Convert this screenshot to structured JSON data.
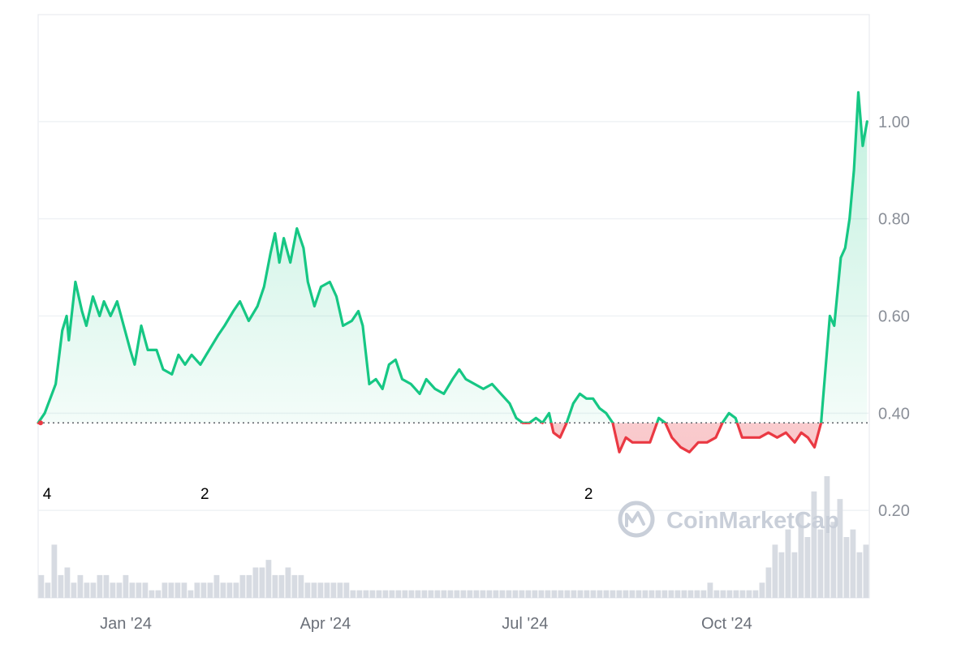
{
  "chart_data": {
    "type": "area",
    "title": "",
    "xlabel": "",
    "ylabel": "",
    "baseline": 0.38,
    "ylim": [
      0.02,
      1.22
    ],
    "xlim": [
      "2023-11-22",
      "2024-12-05"
    ],
    "yticks": [
      {
        "value": 0.2,
        "label": "0.20"
      },
      {
        "value": 0.4,
        "label": "0.40"
      },
      {
        "value": 0.6,
        "label": "0.60"
      },
      {
        "value": 0.8,
        "label": "0.80"
      },
      {
        "value": 1.0,
        "label": "1.00"
      }
    ],
    "xticks": [
      {
        "date": "2024-01-01",
        "label": "Jan '24"
      },
      {
        "date": "2024-04-01",
        "label": "Apr '24"
      },
      {
        "date": "2024-07-01",
        "label": "Jul '24"
      },
      {
        "date": "2024-10-01",
        "label": "Oct '24"
      }
    ],
    "events": [
      {
        "date": "2023-11-23",
        "label": "4"
      },
      {
        "date": "2024-02-06",
        "label": "2"
      },
      {
        "date": "2024-07-30",
        "label": "2"
      }
    ],
    "series": [
      {
        "points": [
          [
            "2023-11-22",
            0.38
          ],
          [
            "2023-11-25",
            0.4
          ],
          [
            "2023-11-30",
            0.46
          ],
          [
            "2023-12-03",
            0.57
          ],
          [
            "2023-12-05",
            0.6
          ],
          [
            "2023-12-06",
            0.55
          ],
          [
            "2023-12-09",
            0.67
          ],
          [
            "2023-12-12",
            0.61
          ],
          [
            "2023-12-14",
            0.58
          ],
          [
            "2023-12-17",
            0.64
          ],
          [
            "2023-12-20",
            0.6
          ],
          [
            "2023-12-22",
            0.63
          ],
          [
            "2023-12-25",
            0.6
          ],
          [
            "2023-12-28",
            0.63
          ],
          [
            "2023-12-31",
            0.58
          ],
          [
            "2024-01-03",
            0.53
          ],
          [
            "2024-01-05",
            0.5
          ],
          [
            "2024-01-08",
            0.58
          ],
          [
            "2024-01-11",
            0.53
          ],
          [
            "2024-01-15",
            0.53
          ],
          [
            "2024-01-18",
            0.49
          ],
          [
            "2024-01-22",
            0.48
          ],
          [
            "2024-01-25",
            0.52
          ],
          [
            "2024-01-28",
            0.5
          ],
          [
            "2024-01-31",
            0.52
          ],
          [
            "2024-02-04",
            0.5
          ],
          [
            "2024-02-08",
            0.53
          ],
          [
            "2024-02-12",
            0.56
          ],
          [
            "2024-02-15",
            0.58
          ],
          [
            "2024-02-19",
            0.61
          ],
          [
            "2024-02-22",
            0.63
          ],
          [
            "2024-02-26",
            0.59
          ],
          [
            "2024-03-01",
            0.62
          ],
          [
            "2024-03-04",
            0.66
          ],
          [
            "2024-03-07",
            0.73
          ],
          [
            "2024-03-09",
            0.77
          ],
          [
            "2024-03-11",
            0.71
          ],
          [
            "2024-03-13",
            0.76
          ],
          [
            "2024-03-16",
            0.71
          ],
          [
            "2024-03-19",
            0.78
          ],
          [
            "2024-03-22",
            0.74
          ],
          [
            "2024-03-24",
            0.67
          ],
          [
            "2024-03-27",
            0.62
          ],
          [
            "2024-03-30",
            0.66
          ],
          [
            "2024-04-03",
            0.67
          ],
          [
            "2024-04-06",
            0.64
          ],
          [
            "2024-04-09",
            0.58
          ],
          [
            "2024-04-13",
            0.59
          ],
          [
            "2024-04-16",
            0.61
          ],
          [
            "2024-04-18",
            0.58
          ],
          [
            "2024-04-21",
            0.46
          ],
          [
            "2024-04-24",
            0.47
          ],
          [
            "2024-04-27",
            0.45
          ],
          [
            "2024-04-30",
            0.5
          ],
          [
            "2024-05-03",
            0.51
          ],
          [
            "2024-05-06",
            0.47
          ],
          [
            "2024-05-10",
            0.46
          ],
          [
            "2024-05-14",
            0.44
          ],
          [
            "2024-05-17",
            0.47
          ],
          [
            "2024-05-21",
            0.45
          ],
          [
            "2024-05-25",
            0.44
          ],
          [
            "2024-05-29",
            0.47
          ],
          [
            "2024-06-01",
            0.49
          ],
          [
            "2024-06-04",
            0.47
          ],
          [
            "2024-06-08",
            0.46
          ],
          [
            "2024-06-12",
            0.45
          ],
          [
            "2024-06-16",
            0.46
          ],
          [
            "2024-06-20",
            0.44
          ],
          [
            "2024-06-24",
            0.42
          ],
          [
            "2024-06-27",
            0.39
          ],
          [
            "2024-06-30",
            0.38
          ],
          [
            "2024-07-03",
            0.38
          ],
          [
            "2024-07-06",
            0.39
          ],
          [
            "2024-07-09",
            0.38
          ],
          [
            "2024-07-12",
            0.4
          ],
          [
            "2024-07-14",
            0.36
          ],
          [
            "2024-07-17",
            0.35
          ],
          [
            "2024-07-20",
            0.38
          ],
          [
            "2024-07-23",
            0.42
          ],
          [
            "2024-07-26",
            0.44
          ],
          [
            "2024-07-29",
            0.43
          ],
          [
            "2024-08-01",
            0.43
          ],
          [
            "2024-08-04",
            0.41
          ],
          [
            "2024-08-07",
            0.4
          ],
          [
            "2024-08-10",
            0.38
          ],
          [
            "2024-08-13",
            0.32
          ],
          [
            "2024-08-16",
            0.35
          ],
          [
            "2024-08-19",
            0.34
          ],
          [
            "2024-08-23",
            0.34
          ],
          [
            "2024-08-27",
            0.34
          ],
          [
            "2024-08-31",
            0.39
          ],
          [
            "2024-09-03",
            0.38
          ],
          [
            "2024-09-06",
            0.35
          ],
          [
            "2024-09-10",
            0.33
          ],
          [
            "2024-09-14",
            0.32
          ],
          [
            "2024-09-18",
            0.34
          ],
          [
            "2024-09-22",
            0.34
          ],
          [
            "2024-09-26",
            0.35
          ],
          [
            "2024-09-29",
            0.38
          ],
          [
            "2024-10-02",
            0.4
          ],
          [
            "2024-10-05",
            0.39
          ],
          [
            "2024-10-08",
            0.35
          ],
          [
            "2024-10-12",
            0.35
          ],
          [
            "2024-10-16",
            0.35
          ],
          [
            "2024-10-20",
            0.36
          ],
          [
            "2024-10-24",
            0.35
          ],
          [
            "2024-10-28",
            0.36
          ],
          [
            "2024-11-01",
            0.34
          ],
          [
            "2024-11-04",
            0.36
          ],
          [
            "2024-11-07",
            0.35
          ],
          [
            "2024-11-10",
            0.33
          ],
          [
            "2024-11-13",
            0.38
          ],
          [
            "2024-11-15",
            0.49
          ],
          [
            "2024-11-17",
            0.6
          ],
          [
            "2024-11-19",
            0.58
          ],
          [
            "2024-11-22",
            0.72
          ],
          [
            "2024-11-24",
            0.74
          ],
          [
            "2024-11-26",
            0.8
          ],
          [
            "2024-11-28",
            0.9
          ],
          [
            "2024-11-30",
            1.06
          ],
          [
            "2024-12-02",
            0.95
          ],
          [
            "2024-12-04",
            1.0
          ]
        ]
      }
    ],
    "volume": [
      0.03,
      0.02,
      0.07,
      0.03,
      0.04,
      0.02,
      0.03,
      0.02,
      0.02,
      0.03,
      0.03,
      0.02,
      0.02,
      0.03,
      0.02,
      0.02,
      0.02,
      0.01,
      0.01,
      0.02,
      0.02,
      0.02,
      0.02,
      0.01,
      0.02,
      0.02,
      0.02,
      0.03,
      0.02,
      0.02,
      0.02,
      0.03,
      0.03,
      0.04,
      0.04,
      0.05,
      0.03,
      0.03,
      0.04,
      0.03,
      0.03,
      0.02,
      0.02,
      0.02,
      0.02,
      0.02,
      0.02,
      0.02,
      0.01,
      0.01,
      0.01,
      0.01,
      0.01,
      0.01,
      0.01,
      0.01,
      0.01,
      0.01,
      0.01,
      0.01,
      0.01,
      0.01,
      0.01,
      0.01,
      0.01,
      0.01,
      0.01,
      0.01,
      0.01,
      0.01,
      0.01,
      0.01,
      0.01,
      0.01,
      0.01,
      0.01,
      0.01,
      0.01,
      0.01,
      0.01,
      0.01,
      0.01,
      0.01,
      0.01,
      0.01,
      0.01,
      0.01,
      0.01,
      0.01,
      0.01,
      0.01,
      0.01,
      0.01,
      0.01,
      0.01,
      0.01,
      0.01,
      0.01,
      0.01,
      0.01,
      0.01,
      0.01,
      0.01,
      0.02,
      0.01,
      0.01,
      0.01,
      0.01,
      0.01,
      0.01,
      0.01,
      0.02,
      0.04,
      0.07,
      0.06,
      0.09,
      0.06,
      0.11,
      0.08,
      0.14,
      0.09,
      0.16,
      0.1,
      0.13,
      0.08,
      0.09,
      0.06,
      0.07
    ],
    "colors": {
      "up_line": "#16c784",
      "down_line": "#ea3943",
      "up_fill": "#16c784",
      "down_fill": "#ea3943",
      "grid": "#eff2f5",
      "baseline_dots": "#5a5f66",
      "volume": "#d7dbe2",
      "frame": "#e4e7ec",
      "watermark": "#c9cfd9"
    },
    "grid": true,
    "legend": "none"
  },
  "watermark": {
    "text": "CoinMarketCap",
    "icon": "coinmarketcap-logo-icon"
  }
}
